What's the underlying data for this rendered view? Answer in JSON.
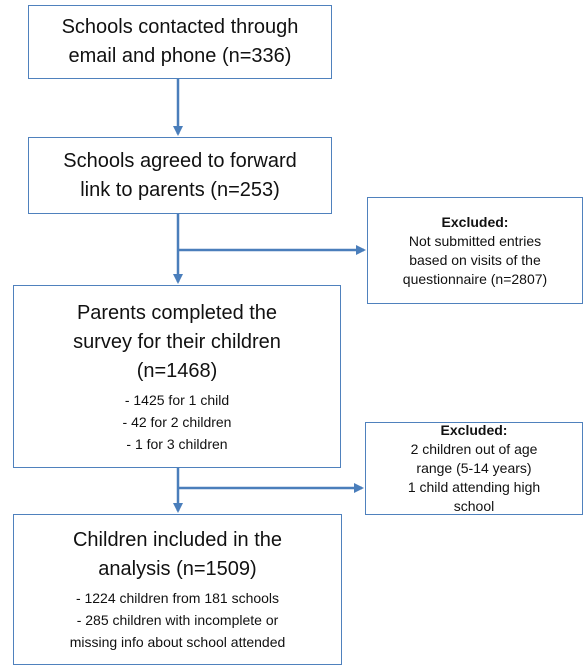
{
  "nodes": [
    {
      "title": [
        "Schools contacted through",
        "email and phone (n=336)"
      ]
    },
    {
      "title": [
        "Schools agreed to forward",
        "link to parents (n=253)"
      ]
    },
    {
      "title": [
        "Parents completed the",
        "survey for their children",
        "(n=1468)"
      ],
      "details": [
        "- 1425 for 1 child",
        "- 42 for 2 children",
        "- 1 for 3 children"
      ]
    },
    {
      "title": [
        "Children included in the",
        "analysis (n=1509)"
      ],
      "details": [
        "- 1224 children from 181 schools",
        "- 285 children with incomplete or",
        "missing info about school attended"
      ]
    }
  ],
  "exclusions": [
    {
      "heading": "Excluded:",
      "lines": [
        "Not submitted entries",
        "based on visits of the",
        "questionnaire (n=2807)"
      ]
    },
    {
      "heading": "Excluded:",
      "lines": [
        "2 children out of age",
        "range (5-14 years)",
        "1 child attending high",
        "school"
      ]
    }
  ]
}
